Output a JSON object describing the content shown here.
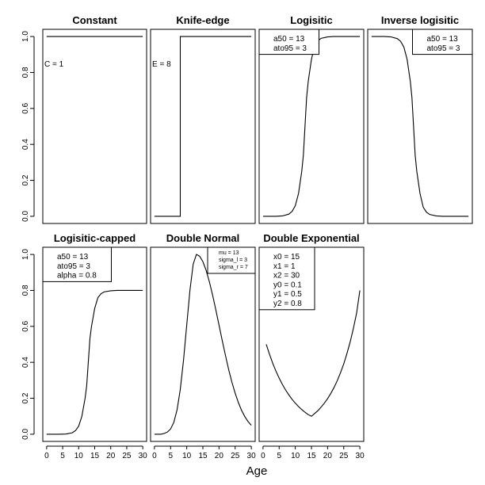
{
  "figure": {
    "xlabel": "Age"
  },
  "chart_data": [
    {
      "type": "line",
      "title": "Constant",
      "xlim": [
        0,
        30
      ],
      "ylim": [
        0,
        1
      ],
      "legend": [
        "C = 1"
      ],
      "legend_position": "left",
      "legend_box": false,
      "x_ticks": [],
      "y_ticks": [
        0,
        0.2,
        0.4,
        0.6,
        0.8,
        1.0
      ],
      "y_tick_labels": [
        "0.0",
        "0.2",
        "0.4",
        "0.6",
        "0.8",
        "1.0"
      ],
      "series": [
        {
          "x": [
            0,
            30
          ],
          "y": [
            1,
            1
          ]
        }
      ]
    },
    {
      "type": "line",
      "title": "Knife-edge",
      "xlim": [
        0,
        30
      ],
      "ylim": [
        0,
        1
      ],
      "legend": [
        "E = 8"
      ],
      "legend_position": "left",
      "legend_box": false,
      "x_ticks": [],
      "y_ticks": [],
      "series": [
        {
          "x": [
            0,
            8,
            8,
            30
          ],
          "y": [
            0,
            0,
            1,
            1
          ]
        }
      ]
    },
    {
      "type": "line",
      "title": "Logisitic",
      "xlim": [
        0,
        30
      ],
      "ylim": [
        0,
        1
      ],
      "legend": [
        "a50 = 13",
        "ato95 = 3"
      ],
      "legend_position": "top-left",
      "legend_box": true,
      "x_ticks": [],
      "y_ticks": [],
      "series": [
        {
          "x": [
            0,
            2,
            4,
            6,
            8,
            9,
            10,
            11,
            12,
            12.5,
            13,
            13.5,
            14,
            15,
            16,
            17,
            18,
            20,
            22,
            25,
            30
          ],
          "y": [
            0.0,
            0.0,
            0.0,
            0.002,
            0.012,
            0.027,
            0.059,
            0.127,
            0.25,
            0.34,
            0.5,
            0.66,
            0.75,
            0.873,
            0.95,
            0.977,
            0.99,
            0.998,
            1.0,
            1.0,
            1.0
          ]
        }
      ]
    },
    {
      "type": "line",
      "title": "Inverse logisitic",
      "xlim": [
        0,
        30
      ],
      "ylim": [
        0,
        1
      ],
      "legend": [
        "a50 = 13",
        "ato95 = 3"
      ],
      "legend_position": "top-right",
      "legend_box": true,
      "x_ticks": [],
      "y_ticks": [],
      "series": [
        {
          "x": [
            0,
            2,
            4,
            6,
            8,
            9,
            10,
            11,
            12,
            12.5,
            13,
            13.5,
            14,
            15,
            16,
            17,
            18,
            20,
            22,
            25,
            30
          ],
          "y": [
            1.0,
            1.0,
            1.0,
            0.998,
            0.988,
            0.973,
            0.941,
            0.873,
            0.75,
            0.66,
            0.5,
            0.34,
            0.25,
            0.127,
            0.05,
            0.023,
            0.01,
            0.002,
            0.0,
            0.0,
            0.0
          ]
        }
      ]
    },
    {
      "type": "line",
      "title": "Logisitic-capped",
      "xlim": [
        0,
        30
      ],
      "ylim": [
        0,
        1
      ],
      "legend": [
        "a50 = 13",
        "ato95 = 3",
        "alpha = 0.8"
      ],
      "legend_position": "top-left",
      "legend_box": true,
      "x_ticks": [
        0,
        5,
        10,
        15,
        20,
        25,
        30
      ],
      "x_tick_labels": [
        "0",
        "5",
        "10",
        "15",
        "20",
        "25",
        "30"
      ],
      "y_ticks": [
        0,
        0.2,
        0.4,
        0.6,
        0.8,
        1.0
      ],
      "y_tick_labels": [
        "0.0",
        "0.2",
        "0.4",
        "0.6",
        "0.8",
        "1.0"
      ],
      "series": [
        {
          "x": [
            0,
            4,
            6,
            8,
            9,
            10,
            11,
            12,
            12.5,
            13,
            13.5,
            14,
            15,
            16,
            17,
            18,
            20,
            22,
            25,
            30
          ],
          "y": [
            0.0,
            0.0,
            0.001,
            0.008,
            0.02,
            0.045,
            0.1,
            0.2,
            0.27,
            0.4,
            0.53,
            0.6,
            0.7,
            0.76,
            0.782,
            0.792,
            0.798,
            0.8,
            0.8,
            0.8
          ]
        }
      ]
    },
    {
      "type": "line",
      "title": "Double Normal",
      "xlim": [
        0,
        30
      ],
      "ylim": [
        0,
        1
      ],
      "legend": [
        "mu = 13",
        "sigma_l = 3",
        "sigma_r = 7"
      ],
      "legend_position": "top-right",
      "legend_box": true,
      "x_ticks": [
        0,
        5,
        10,
        15,
        20,
        25,
        30
      ],
      "x_tick_labels": [
        "0",
        "5",
        "10",
        "15",
        "20",
        "25",
        "30"
      ],
      "y_ticks": [],
      "series": [
        {
          "x": [
            0,
            2,
            3,
            4,
            5,
            6,
            7,
            8,
            9,
            10,
            11,
            12,
            13,
            14,
            15,
            16,
            17,
            18,
            19,
            20,
            21,
            22,
            23,
            24,
            25,
            26,
            27,
            28,
            29,
            30
          ],
          "y": [
            0.0,
            0.0,
            0.004,
            0.012,
            0.029,
            0.066,
            0.135,
            0.249,
            0.411,
            0.607,
            0.801,
            0.946,
            1.0,
            0.99,
            0.96,
            0.912,
            0.849,
            0.775,
            0.693,
            0.607,
            0.521,
            0.438,
            0.359,
            0.289,
            0.228,
            0.176,
            0.132,
            0.098,
            0.07,
            0.05
          ]
        }
      ]
    },
    {
      "type": "line",
      "title": "Double Exponential",
      "xlim": [
        0,
        30
      ],
      "ylim": [
        0,
        1
      ],
      "legend": [
        "x0 = 15",
        "x1 = 1",
        "x2 = 30",
        "y0 = 0.1",
        "y1 = 0.5",
        "y2 = 0.8"
      ],
      "legend_position": "top-left",
      "legend_box": true,
      "x_ticks": [
        0,
        5,
        10,
        15,
        20,
        25,
        30
      ],
      "x_tick_labels": [
        "0",
        "5",
        "10",
        "15",
        "20",
        "25",
        "30"
      ],
      "y_ticks": [],
      "series": [
        {
          "x": [
            1,
            2,
            3,
            4,
            5,
            6,
            7,
            8,
            9,
            10,
            11,
            12,
            13,
            14,
            15,
            16,
            17,
            18,
            19,
            20,
            21,
            22,
            23,
            24,
            25,
            26,
            27,
            28,
            29,
            30
          ],
          "y": [
            0.5,
            0.445,
            0.395,
            0.351,
            0.312,
            0.277,
            0.246,
            0.219,
            0.194,
            0.173,
            0.154,
            0.137,
            0.122,
            0.109,
            0.1,
            0.115,
            0.131,
            0.151,
            0.173,
            0.198,
            0.227,
            0.26,
            0.298,
            0.342,
            0.391,
            0.449,
            0.514,
            0.589,
            0.675,
            0.8
          ]
        }
      ]
    }
  ]
}
